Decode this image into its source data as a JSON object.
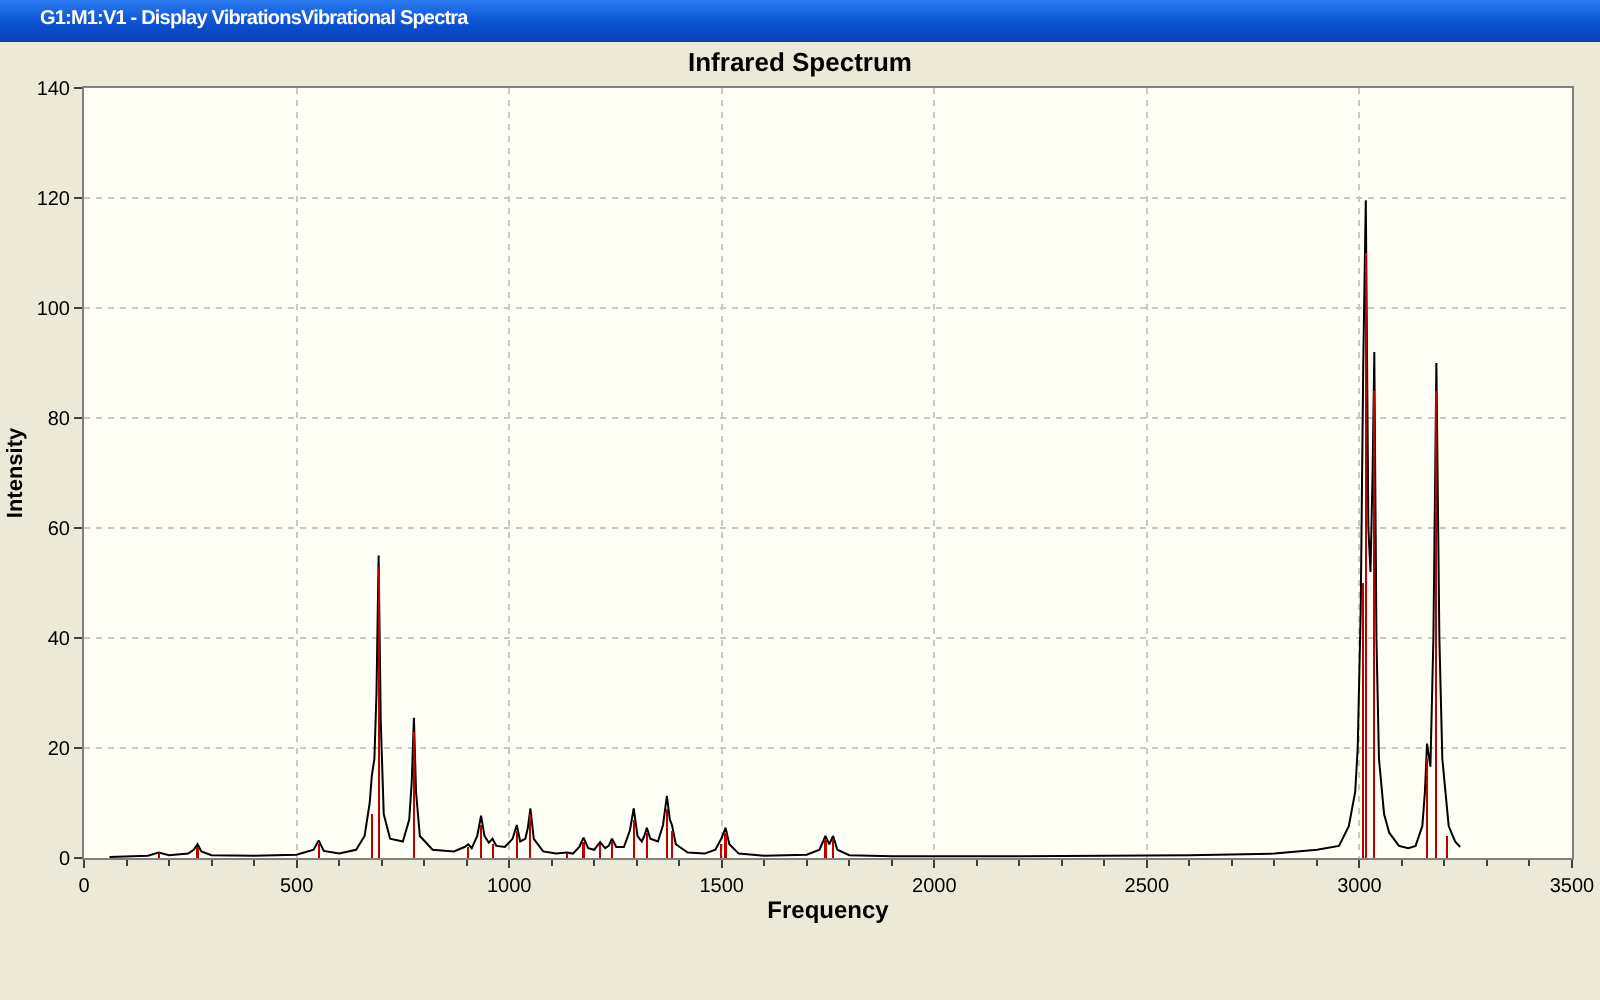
{
  "chart_data": {
    "type": "line",
    "title": "Infrared Spectrum",
    "xlabel": "Frequency",
    "ylabel": "Intensity",
    "annotations": [
      "G1:M1:V1 - Display VibrationsVibrational Spectra"
    ],
    "series": [
      {
        "color": "#000000",
        "x": [
          60,
          150,
          176,
          200,
          245,
          258,
          267,
          276,
          300,
          400,
          500,
          540,
          552,
          564,
          600,
          640,
          660,
          672,
          677,
          683,
          688,
          693,
          698,
          705,
          720,
          750,
          765,
          771,
          776,
          781,
          790,
          820,
          870,
          895,
          904,
          912,
          925,
          934,
          942,
          952,
          961,
          970,
          990,
          1008,
          1018,
          1026,
          1038,
          1044,
          1050,
          1058,
          1080,
          1110,
          1136,
          1150,
          1165,
          1175,
          1186,
          1200,
          1214,
          1226,
          1234,
          1242,
          1252,
          1270,
          1284,
          1293,
          1302,
          1312,
          1318,
          1324,
          1332,
          1350,
          1362,
          1371,
          1378,
          1383,
          1392,
          1420,
          1460,
          1485,
          1499,
          1509,
          1518,
          1540,
          1600,
          1700,
          1730,
          1744,
          1753,
          1762,
          1772,
          1800,
          1900,
          2000,
          2200,
          2400,
          2600,
          2800,
          2900,
          2952,
          2975,
          2990,
          2996,
          3003,
          3009,
          3015,
          3021,
          3026,
          3031,
          3035,
          3040,
          3046,
          3058,
          3070,
          3093,
          3115,
          3132,
          3148,
          3154,
          3159,
          3167,
          3174,
          3181,
          3188,
          3195,
          3210,
          3225,
          3237
        ],
        "values": [
          0.2,
          0.4,
          1.0,
          0.5,
          0.8,
          1.5,
          2.5,
          1.2,
          0.5,
          0.4,
          0.6,
          1.5,
          3.2,
          1.3,
          0.8,
          1.5,
          4,
          10,
          15,
          18,
          30,
          55,
          25,
          8,
          3.5,
          3,
          7,
          14,
          25.5,
          12,
          4,
          1.5,
          1.2,
          2,
          2.5,
          1.8,
          4,
          7.7,
          4,
          2.8,
          3.5,
          2.2,
          2,
          3.5,
          6,
          3,
          3.5,
          5.5,
          9,
          3.5,
          1.2,
          0.8,
          1.0,
          0.8,
          2,
          3.7,
          1.8,
          1.5,
          2.9,
          1.8,
          2.2,
          3.5,
          2,
          2,
          5,
          9,
          4,
          3,
          4,
          5.5,
          3.5,
          3,
          6,
          11.3,
          7,
          6,
          2.5,
          1,
          0.8,
          1.5,
          3.5,
          5.5,
          2.5,
          0.8,
          0.4,
          0.6,
          1.5,
          4,
          2.5,
          4,
          1.5,
          0.5,
          0.3,
          0.3,
          0.3,
          0.4,
          0.5,
          0.8,
          1.5,
          2.2,
          5.8,
          12,
          20,
          45,
          90,
          119.6,
          60,
          52,
          70,
          92,
          40,
          18,
          8,
          4.6,
          2.2,
          1.8,
          2.2,
          5.8,
          12,
          20.8,
          16.6,
          40,
          90,
          40,
          18,
          5.8,
          3,
          2
        ]
      },
      {
        "type": "bar",
        "color": "#c00000",
        "x": [
          176,
          267,
          552,
          677,
          693,
          776,
          904,
          934,
          961,
          1018,
          1050,
          1136,
          1175,
          1214,
          1242,
          1293,
          1324,
          1371,
          1383,
          1499,
          1509,
          1744,
          1762,
          3008,
          3015,
          3035,
          3159,
          3181,
          3205
        ],
        "values": [
          0.8,
          2,
          2.5,
          8,
          53,
          23,
          2,
          6,
          2.5,
          5,
          8,
          0.8,
          3,
          2.5,
          3,
          7,
          4.5,
          9,
          5,
          2.5,
          4.5,
          3.5,
          3.5,
          50,
          110,
          85,
          18,
          85,
          4
        ]
      }
    ],
    "xlim": [
      0,
      3500
    ],
    "xticks": [
      0,
      {
        "value": 100,
        "label": null
      },
      {
        "value": 200,
        "label": null
      },
      {
        "value": 300,
        "label": null
      },
      {
        "value": 400,
        "label": null
      },
      500,
      {
        "value": 600,
        "label": null
      },
      {
        "value": 700,
        "label": null
      },
      {
        "value": 800,
        "label": null
      },
      {
        "value": 900,
        "label": null
      },
      1000,
      {
        "value": 1100,
        "label": null
      },
      {
        "value": 1200,
        "label": null
      },
      {
        "value": 1300,
        "label": null
      },
      {
        "value": 1400,
        "label": null
      },
      1500,
      {
        "value": 1600,
        "label": null
      },
      {
        "value": 1700,
        "label": null
      },
      {
        "value": 1800,
        "label": null
      },
      {
        "value": 1900,
        "label": null
      },
      2000,
      {
        "value": 2100,
        "label": null
      },
      {
        "value": 2200,
        "label": null
      },
      {
        "value": 2300,
        "label": null
      },
      {
        "value": 2400,
        "label": null
      },
      2500,
      {
        "value": 2600,
        "label": null
      },
      {
        "value": 2700,
        "label": null
      },
      {
        "value": 2800,
        "label": null
      },
      {
        "value": 2900,
        "label": null
      },
      3000,
      {
        "value": 3100,
        "label": null
      },
      {
        "value": 3200,
        "label": null
      },
      {
        "value": 3300,
        "label": null
      },
      {
        "value": 3400,
        "label": null
      },
      3500
    ],
    "ylim": [
      0,
      140
    ],
    "yticks": [
      0,
      20,
      40,
      60,
      80,
      100,
      120,
      140
    ],
    "grid": true
  }
}
